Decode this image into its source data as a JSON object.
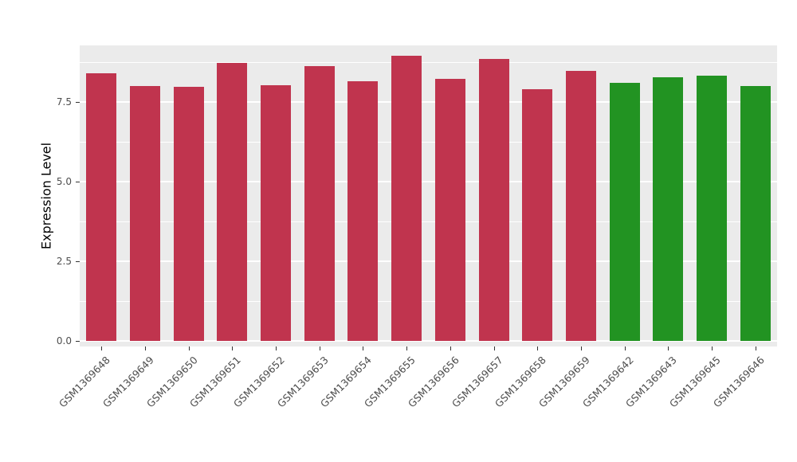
{
  "chart_data": {
    "type": "bar",
    "title": "",
    "xlabel": "",
    "ylabel": "Expression Level",
    "categories": [
      "GSM1369648",
      "GSM1369649",
      "GSM1369650",
      "GSM1369651",
      "GSM1369652",
      "GSM1369653",
      "GSM1369654",
      "GSM1369655",
      "GSM1369656",
      "GSM1369657",
      "GSM1369658",
      "GSM1369659",
      "GSM1369642",
      "GSM1369643",
      "GSM1369645",
      "GSM1369646"
    ],
    "values": [
      8.4,
      8.0,
      7.97,
      8.72,
      8.03,
      8.62,
      8.15,
      8.95,
      8.22,
      8.85,
      7.9,
      8.48,
      8.1,
      8.28,
      8.33,
      8.0
    ],
    "bar_colors": [
      "#C0344E",
      "#C0344E",
      "#C0344E",
      "#C0344E",
      "#C0344E",
      "#C0344E",
      "#C0344E",
      "#C0344E",
      "#C0344E",
      "#C0344E",
      "#C0344E",
      "#C0344E",
      "#229322",
      "#229322",
      "#229322",
      "#229322"
    ],
    "colors": {
      "group_red": "#C0344E",
      "group_green": "#229322",
      "panel_background": "#EBEBEB",
      "grid": "#FFFFFF",
      "axis_text": "#4D4D4D"
    },
    "yticks": [
      0.0,
      2.5,
      5.0,
      7.5
    ],
    "ytick_labels": [
      "0.0",
      "2.5",
      "5.0",
      "7.5"
    ],
    "yticks_minor": [
      1.25,
      3.75,
      6.25,
      8.75
    ],
    "ylim": [
      0,
      9.3
    ],
    "grid": true,
    "legend": "none"
  }
}
